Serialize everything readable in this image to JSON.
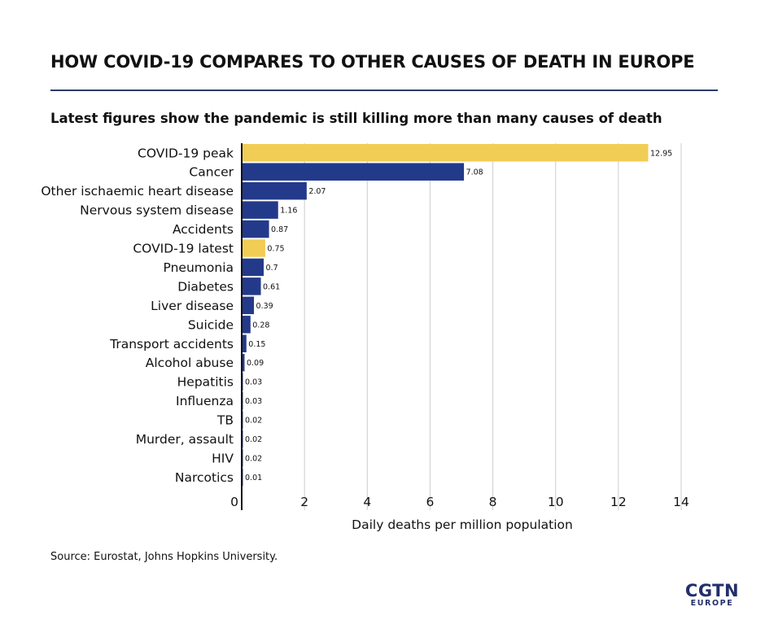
{
  "title": "HOW COVID-19 COMPARES TO OTHER CAUSES OF DEATH IN EUROPE",
  "subtitle": "Latest figures show the pandemic is still killing more than many causes of death",
  "source": "Source: Eurostat, Johns Hopkins University.",
  "logo": {
    "main": "CGTN",
    "sub": "EUROPE"
  },
  "colors": {
    "highlight": "#f2cd55",
    "bar": "#233a8b",
    "text": "#111111",
    "grid": "#cccccc"
  },
  "chart_data": {
    "type": "bar",
    "orientation": "horizontal",
    "categories": [
      "COVID-19 peak",
      "Cancer",
      "Other ischaemic heart disease",
      "Nervous system disease",
      "Accidents",
      "COVID-19 latest",
      "Pneumonia",
      "Diabetes",
      "Liver disease",
      "Suicide",
      "Transport accidents",
      "Alcohol abuse",
      "Hepatitis",
      "Influenza",
      "TB",
      "Murder, assault",
      "HIV",
      "Narcotics"
    ],
    "values": [
      12.95,
      7.08,
      2.07,
      1.16,
      0.87,
      0.75,
      0.7,
      0.61,
      0.39,
      0.28,
      0.15,
      0.09,
      0.03,
      0.03,
      0.02,
      0.02,
      0.02,
      0.01
    ],
    "value_labels": [
      "12.95",
      "7.08",
      "2.07",
      "1.16",
      "0.87",
      "0.75",
      "0.7",
      "0.61",
      "0.39",
      "0.28",
      "0.15",
      "0.09",
      "0.03",
      "0.03",
      "0.02",
      "0.02",
      "0.02",
      "0.01"
    ],
    "highlighted": [
      true,
      false,
      false,
      false,
      false,
      true,
      false,
      false,
      false,
      false,
      false,
      false,
      false,
      false,
      false,
      false,
      false,
      false
    ],
    "xlabel": "Daily deaths per million population",
    "xlim": [
      0,
      14
    ],
    "xticks": [
      0,
      2,
      4,
      6,
      8,
      10,
      12,
      14
    ],
    "xtick_labels": [
      "0",
      "2",
      "4",
      "6",
      "8",
      "10",
      "12",
      "14"
    ],
    "grid": true
  }
}
